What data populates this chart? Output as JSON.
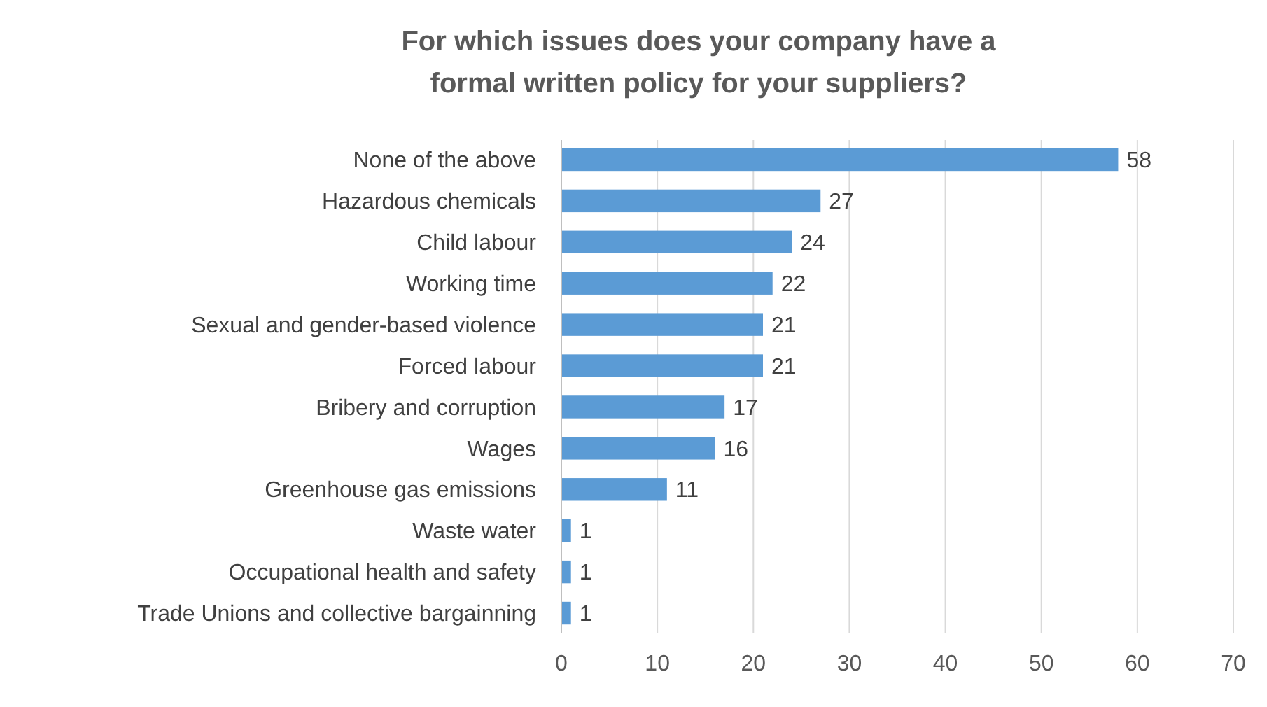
{
  "chart_data": {
    "type": "bar",
    "orientation": "horizontal",
    "title": "For which issues does your company have a formal written policy for your suppliers?",
    "categories": [
      "None of the above",
      "Hazardous chemicals",
      "Child labour",
      "Working time",
      "Sexual and gender-based violence",
      "Forced labour",
      "Bribery and corruption",
      "Wages",
      "Greenhouse gas emissions",
      "Waste water",
      "Occupational health and safety",
      "Trade Unions and collective bargainning"
    ],
    "values": [
      58,
      27,
      24,
      22,
      21,
      21,
      17,
      16,
      11,
      1,
      1,
      1
    ],
    "color": "#5b9bd5",
    "xlim": [
      0,
      70
    ],
    "xticks": [
      0,
      10,
      20,
      30,
      40,
      50,
      60,
      70
    ],
    "grid": "x",
    "data_labels": true
  }
}
